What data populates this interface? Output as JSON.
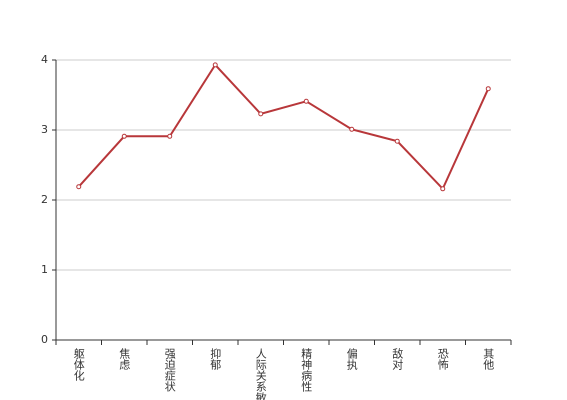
{
  "chart_data": {
    "type": "line",
    "categories": [
      "躯体化",
      "焦虑",
      "强迫症状",
      "抑郁",
      "人际关系敏感",
      "精神病性",
      "偏执",
      "敌对",
      "恐怖",
      "其他"
    ],
    "values": [
      2.19,
      2.91,
      2.91,
      3.93,
      3.23,
      3.41,
      3.01,
      2.84,
      2.16,
      3.59
    ],
    "color": "#b8373a",
    "ylim": [
      0,
      4
    ],
    "yticks": [
      0,
      1,
      2,
      3,
      4
    ],
    "grid": true
  }
}
